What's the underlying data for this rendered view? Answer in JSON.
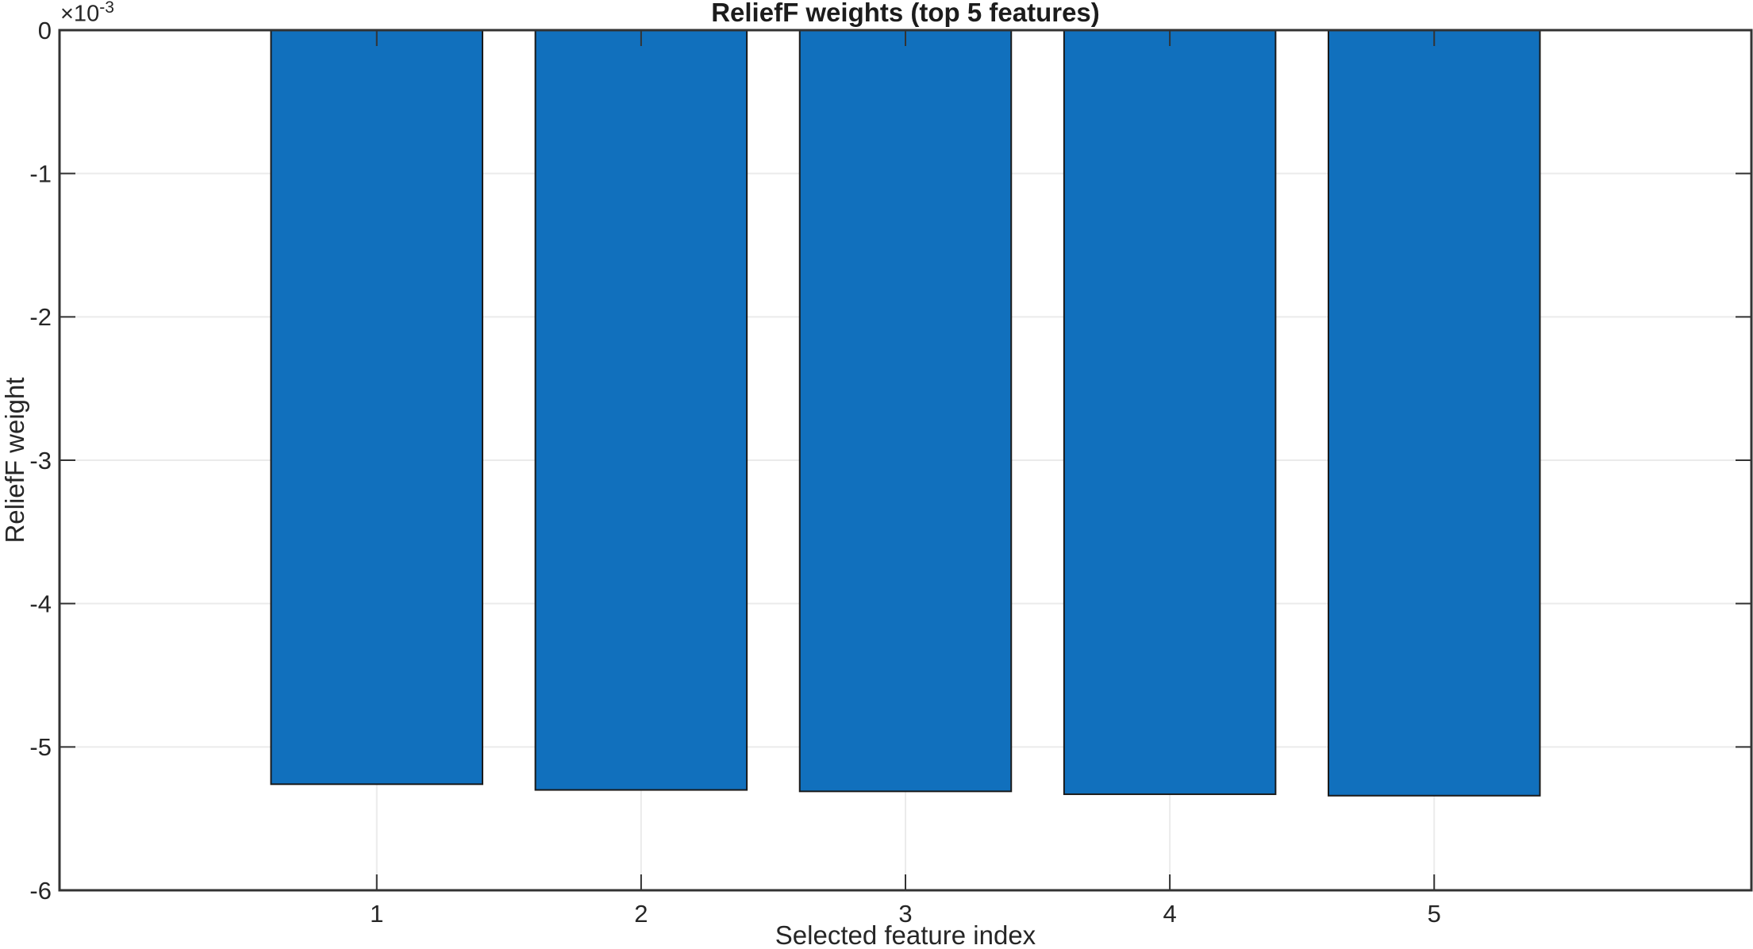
{
  "chart_data": {
    "type": "bar",
    "title": "ReliefF weights (top 5 features)",
    "xlabel": "Selected feature index",
    "ylabel": "ReliefF weight",
    "y_multiplier": "×10",
    "y_multiplier_exp": "-3",
    "categories": [
      "1",
      "2",
      "3",
      "4",
      "5"
    ],
    "values": [
      -0.00526,
      -0.0053,
      -0.00531,
      -0.00533,
      -0.00534
    ],
    "bar_width": 0.8,
    "xlim": [
      -0.2,
      6.2
    ],
    "ylim": [
      -0.006,
      0
    ],
    "xticks": [
      1,
      2,
      3,
      4,
      5
    ],
    "yticks": [
      0,
      -0.001,
      -0.002,
      -0.003,
      -0.004,
      -0.005,
      -0.006
    ],
    "ytick_labels": [
      "0",
      "-1",
      "-2",
      "-3",
      "-4",
      "-5",
      "-6"
    ],
    "grid": true,
    "legend_position": "none",
    "colors": {
      "bar_fill": "#1170bd",
      "bar_edge": "#1a1a1a",
      "axis": "#333333",
      "grid": "#ebebeb",
      "text": "#262626",
      "background": "#ffffff"
    }
  }
}
